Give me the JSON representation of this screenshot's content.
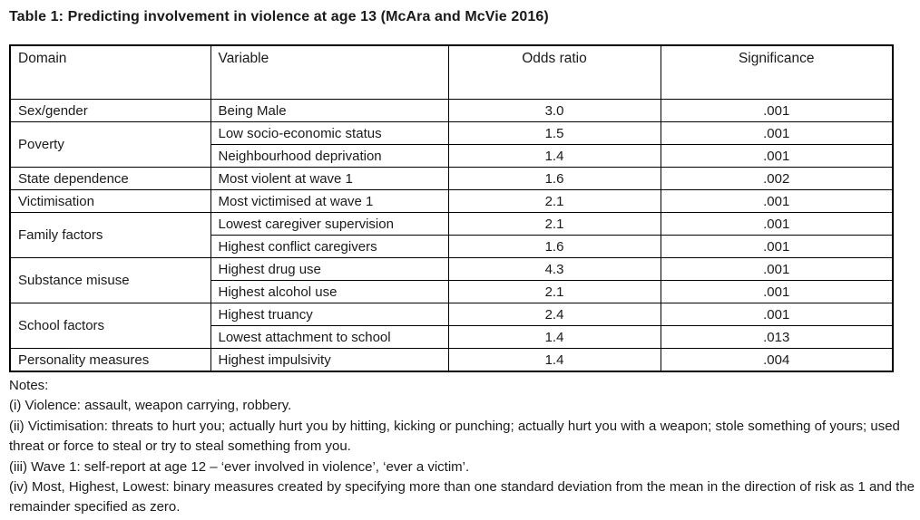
{
  "title": "Table 1: Predicting involvement in violence at age 13 (McAra and McVie 2016)",
  "table": {
    "headers": [
      "Domain",
      "Variable",
      "Odds ratio",
      "Significance"
    ],
    "rows": [
      {
        "domain": "Sex/gender",
        "rowspan": 1,
        "variable": "Being Male",
        "odds_ratio": "3.0",
        "significance": ".001"
      },
      {
        "domain": "Poverty",
        "rowspan": 2,
        "variable": "Low socio-economic status",
        "odds_ratio": "1.5",
        "significance": ".001"
      },
      {
        "domain": null,
        "variable": "Neighbourhood deprivation",
        "odds_ratio": "1.4",
        "significance": ".001"
      },
      {
        "domain": "State dependence",
        "rowspan": 1,
        "variable": "Most violent at wave 1",
        "odds_ratio": "1.6",
        "significance": ".002"
      },
      {
        "domain": "Victimisation",
        "rowspan": 1,
        "variable": "Most victimised at wave 1",
        "odds_ratio": "2.1",
        "significance": ".001"
      },
      {
        "domain": "Family factors",
        "rowspan": 2,
        "variable": "Lowest caregiver supervision",
        "odds_ratio": "2.1",
        "significance": ".001"
      },
      {
        "domain": null,
        "variable": "Highest conflict caregivers",
        "odds_ratio": "1.6",
        "significance": ".001"
      },
      {
        "domain": "Substance misuse",
        "rowspan": 2,
        "variable": "Highest drug use",
        "odds_ratio": "4.3",
        "significance": ".001"
      },
      {
        "domain": null,
        "variable": "Highest alcohol use",
        "odds_ratio": "2.1",
        "significance": ".001"
      },
      {
        "domain": "School factors",
        "rowspan": 2,
        "variable": "Highest truancy",
        "odds_ratio": "2.4",
        "significance": ".001"
      },
      {
        "domain": null,
        "variable": "Lowest attachment to school",
        "odds_ratio": "1.4",
        "significance": ".013"
      },
      {
        "domain": "Personality measures",
        "rowspan": 1,
        "variable": "Highest impulsivity",
        "odds_ratio": "1.4",
        "significance": ".004"
      }
    ]
  },
  "notes": {
    "label": "Notes:",
    "items": [
      "(i) Violence: assault, weapon carrying, robbery.",
      "(ii) Victimisation: threats to hurt you; actually hurt you by hitting, kicking or punching;  actually hurt you with a weapon; stole something of yours; used threat or force to steal or try to steal something from you.",
      "(iii) Wave 1: self-report at age 12 – ‘ever involved in violence’, ‘ever a victim’.",
      "(iv) Most, Highest, Lowest: binary measures created by specifying more than one standard deviation from the mean in the direction of risk as 1 and the remainder specified as zero."
    ]
  }
}
